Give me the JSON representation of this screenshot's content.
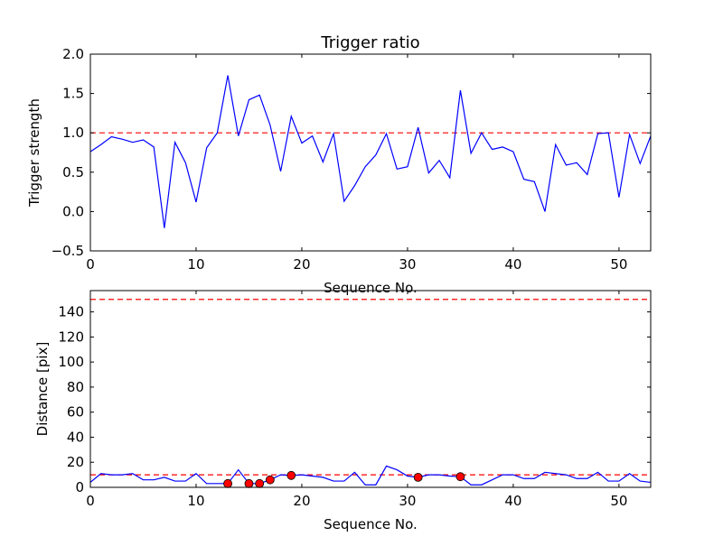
{
  "chart_data": [
    {
      "type": "line",
      "title": "Trigger ratio",
      "xlabel": "Sequence No.",
      "ylabel": "Trigger strength",
      "xlim": [
        0,
        53
      ],
      "ylim": [
        -0.5,
        2.0
      ],
      "xticks": [
        0,
        10,
        20,
        30,
        40,
        50
      ],
      "yticks": [
        -0.5,
        0.0,
        0.5,
        1.0,
        1.5,
        2.0
      ],
      "ytick_labels": [
        "−0.5",
        "0.0",
        "0.5",
        "1.0",
        "1.5",
        "2.0"
      ],
      "threshold": 1.0,
      "line_color": "#0000ff",
      "threshold_color": "#ff0000",
      "x": [
        0,
        1,
        2,
        3,
        4,
        5,
        6,
        7,
        8,
        9,
        10,
        11,
        12,
        13,
        14,
        15,
        16,
        17,
        18,
        19,
        20,
        21,
        22,
        23,
        24,
        25,
        26,
        27,
        28,
        29,
        30,
        31,
        32,
        33,
        34,
        35,
        36,
        37,
        38,
        39,
        40,
        41,
        42,
        43,
        44,
        45,
        46,
        47,
        48,
        49,
        50,
        51,
        52,
        53
      ],
      "y": [
        0.76,
        0.85,
        0.95,
        0.92,
        0.88,
        0.91,
        0.82,
        -0.21,
        0.88,
        0.62,
        0.12,
        0.81,
        1.0,
        1.73,
        0.96,
        1.42,
        1.48,
        1.1,
        0.51,
        1.21,
        0.87,
        0.96,
        0.63,
        0.99,
        0.13,
        0.33,
        0.57,
        0.72,
        0.99,
        0.54,
        0.57,
        1.07,
        0.49,
        0.65,
        0.43,
        1.54,
        0.74,
        1.0,
        0.79,
        0.82,
        0.76,
        0.41,
        0.38,
        0.0,
        0.85,
        0.59,
        0.62,
        0.47,
        0.99,
        1.0,
        0.18,
        0.98,
        0.61,
        0.96
      ]
    },
    {
      "type": "line",
      "title": "",
      "xlabel": "Sequence No.",
      "ylabel": "Distance [pix]",
      "xlim": [
        0,
        53
      ],
      "ylim": [
        0,
        157
      ],
      "xticks": [
        0,
        10,
        20,
        30,
        40,
        50
      ],
      "yticks": [
        0,
        20,
        40,
        60,
        80,
        100,
        120,
        140
      ],
      "ytick_labels": [
        "0",
        "20",
        "40",
        "60",
        "80",
        "100",
        "120",
        "140"
      ],
      "thresholds": [
        10,
        150
      ],
      "line_color": "#0000ff",
      "threshold_color": "#ff0000",
      "marker_color": "#ff0000",
      "x": [
        0,
        1,
        2,
        3,
        4,
        5,
        6,
        7,
        8,
        9,
        10,
        11,
        12,
        13,
        14,
        15,
        16,
        17,
        18,
        19,
        20,
        21,
        22,
        23,
        24,
        25,
        26,
        27,
        28,
        29,
        30,
        31,
        32,
        33,
        34,
        35,
        36,
        37,
        38,
        39,
        40,
        41,
        42,
        43,
        44,
        45,
        46,
        47,
        48,
        49,
        50,
        51,
        52,
        53
      ],
      "y": [
        4,
        11,
        10,
        10,
        11,
        6,
        6,
        8,
        5,
        5,
        11,
        3,
        3,
        3,
        14,
        3,
        3,
        6,
        10,
        9.5,
        10,
        9,
        8,
        5,
        5,
        12,
        2,
        2,
        17,
        14,
        9,
        8,
        10,
        10,
        9,
        8.5,
        2,
        2,
        6,
        10,
        10,
        7,
        7,
        12,
        11,
        10,
        7,
        7,
        12,
        5,
        5,
        11,
        5,
        4
      ],
      "markers_x": [
        13,
        15,
        16,
        17,
        19,
        31,
        35
      ],
      "markers_y": [
        3,
        3,
        3,
        6,
        9.5,
        8,
        8.5
      ]
    }
  ]
}
